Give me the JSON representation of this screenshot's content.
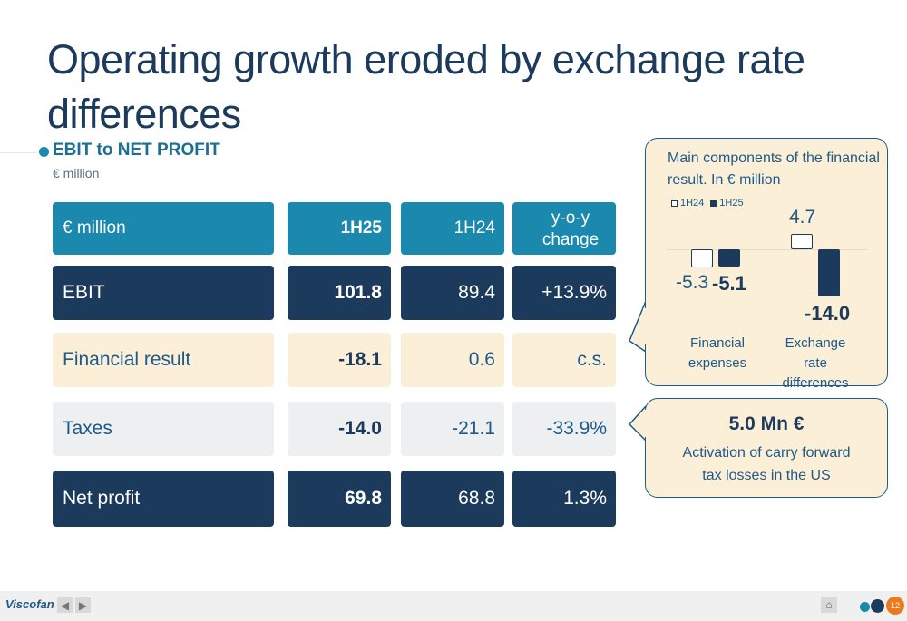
{
  "title": "Operating growth eroded by exchange rate differences",
  "section": {
    "title": "EBIT to NET PROFIT",
    "subtitle": "€ million"
  },
  "table": {
    "headers": {
      "label": "€ million",
      "col1": "1H25",
      "col2": "1H24",
      "col3": "y-o-y change"
    },
    "rows": [
      {
        "label": "EBIT",
        "v1": "101.8",
        "v2": "89.4",
        "v3": "+13.9%"
      },
      {
        "label": "Financial result",
        "v1": "-18.1",
        "v2": "0.6",
        "v3": "c.s."
      },
      {
        "label": "Taxes",
        "v1": "-14.0",
        "v2": "-21.1",
        "v3": "-33.9%"
      },
      {
        "label": "Net profit",
        "v1": "69.8",
        "v2": "68.8",
        "v3": "1.3%"
      }
    ]
  },
  "callout_chart": {
    "title": "Main components of the financial result. In € million",
    "legend": {
      "series1": "1H24",
      "series2": "1H25"
    },
    "labels": {
      "fin_1h24": "-5.3",
      "fin_1h25": "-5.1",
      "fx_1h24": "4.7",
      "fx_1h25": "-14.0",
      "cat1": "Financial expenses",
      "cat2": "Exchange rate differences"
    }
  },
  "chart_data": {
    "type": "bar",
    "title": "Main components of the financial result. In € million",
    "categories": [
      "Financial expenses",
      "Exchange rate differences"
    ],
    "series": [
      {
        "name": "1H24",
        "values": [
          -5.3,
          4.7
        ]
      },
      {
        "name": "1H25",
        "values": [
          -5.1,
          -14.0
        ]
      }
    ],
    "colors": {
      "1H24": "#ffffff",
      "1H25": "#1c3a5c"
    }
  },
  "callout_note": {
    "value": "5.0 Mn €",
    "text": "Activation of carry forward tax losses in the US"
  },
  "footer": {
    "logo": "Viscofan",
    "page_number": "12"
  },
  "colors": {
    "navy": "#1c3a5c",
    "teal": "#1a89ad",
    "cream": "#fcefd7",
    "light_gray": "#eeeff1",
    "orange": "#ec7a1c"
  }
}
